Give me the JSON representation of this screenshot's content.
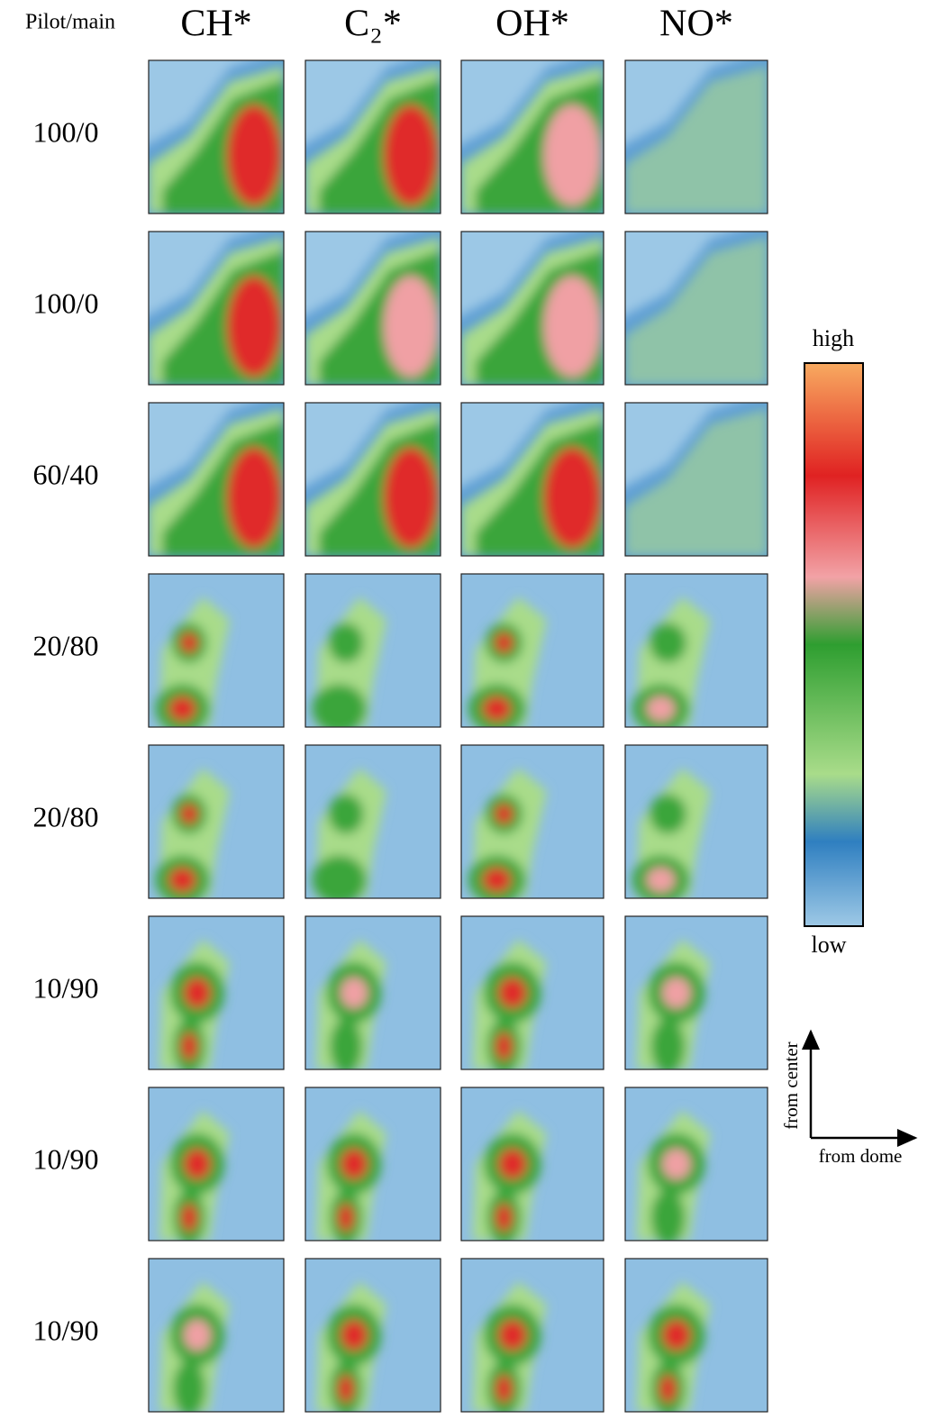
{
  "header": {
    "row_label": "Pilot/main",
    "columns": [
      "CH*",
      "C₂*",
      "OH*",
      "NO*"
    ]
  },
  "rows": [
    "100/0",
    "100/0",
    "60/40",
    "20/80",
    "20/80",
    "10/90",
    "10/90",
    "10/90"
  ],
  "colorbar": {
    "high": "high",
    "low": "low"
  },
  "axes": {
    "vertical": "from center",
    "horizontal": "from dome"
  }
}
